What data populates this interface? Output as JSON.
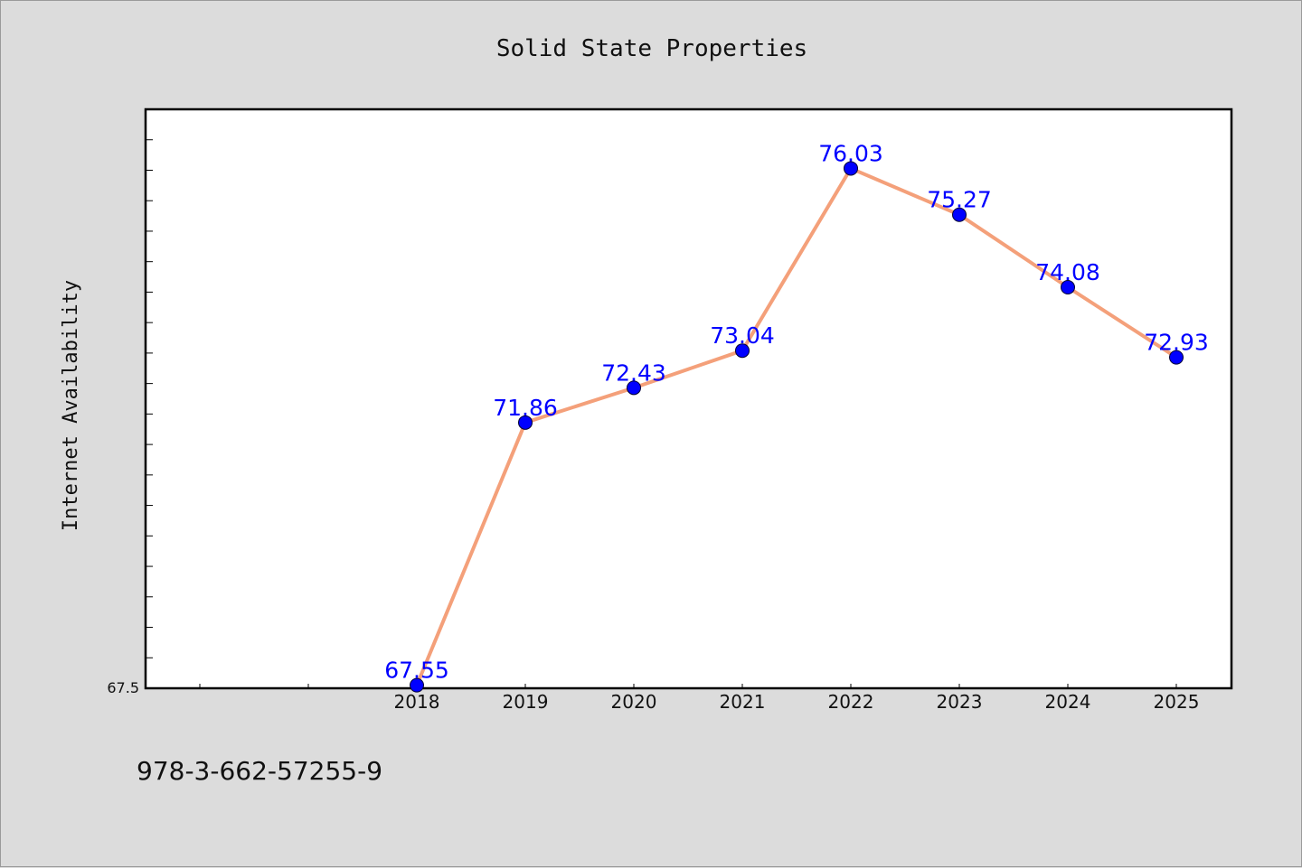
{
  "chart_data": {
    "type": "line",
    "title": "Solid State Properties",
    "xlabel": "",
    "ylabel": "Internet Availability",
    "categories": [
      "2018",
      "2019",
      "2020",
      "2021",
      "2022",
      "2023",
      "2024",
      "2025"
    ],
    "series": [
      {
        "values": [
          67.55,
          71.86,
          72.43,
          73.04,
          76.03,
          75.27,
          74.08,
          72.93
        ],
        "line_color": "#f4a07a",
        "marker_color": "#0000ff"
      }
    ],
    "data_labels": [
      "67.55",
      "71.86",
      "72.43",
      "73.04",
      "76.03",
      "75.27",
      "74.08",
      "72.93"
    ],
    "y_tick_labels": [
      "67.5"
    ],
    "ylim": [
      67.5,
      77.0
    ],
    "grid": false,
    "legend": "none",
    "colors": {
      "plot_background": "#ffffff",
      "page_background": "#dcdcdc",
      "data_label": "#0000ff"
    }
  },
  "footer": {
    "isbn": "978-3-662-57255-9"
  }
}
